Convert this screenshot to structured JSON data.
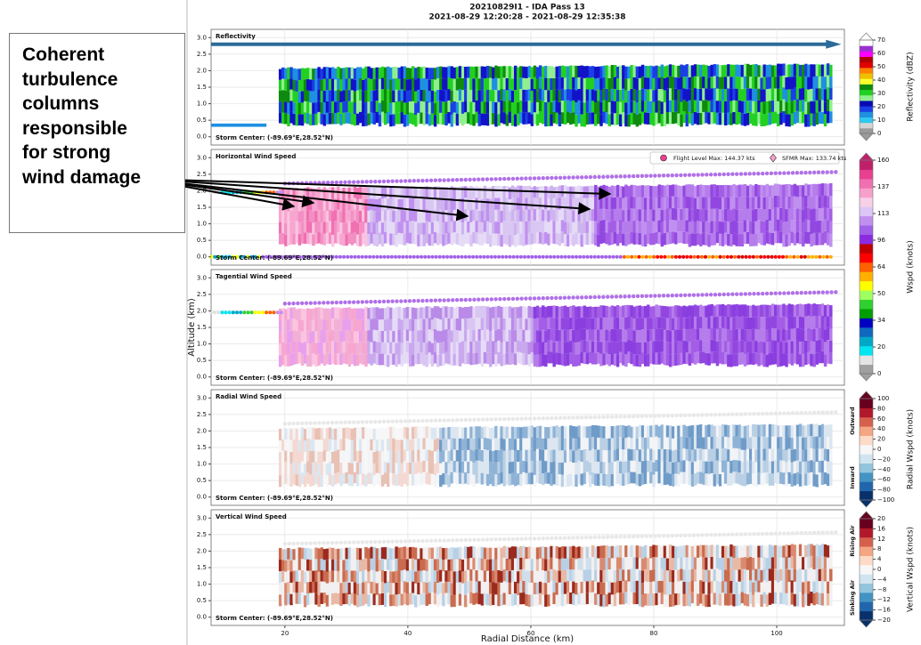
{
  "title": "20210829I1 - IDA Pass 13",
  "subtitle": "2021-08-29 12:20:28 - 2021-08-29 12:35:38",
  "annotation": "Coherent turbulence columns responsible for strong wind damage",
  "x_axis": {
    "label": "Radial Distance (km)",
    "xlim": [
      8,
      111
    ],
    "xticks": [
      20,
      40,
      60,
      80,
      100
    ]
  },
  "y_label": "Altitude (km)",
  "chart_data": [
    {
      "type": "heatmap",
      "title": "Reflectivity",
      "storm_center": "Storm Center: (-89.69°E,28.52°N)",
      "ylim": [
        -0.25,
        3.25
      ],
      "yticks": [
        {
          "value": 0,
          "label": "0.0"
        },
        {
          "value": 0.5,
          "label": "0.5"
        },
        {
          "value": 1,
          "label": "1.0"
        },
        {
          "value": 1.5,
          "label": "1.5"
        },
        {
          "value": 2,
          "label": "2.0"
        },
        {
          "value": 2.5,
          "label": "2.5"
        },
        {
          "value": 3,
          "label": "3.0"
        }
      ],
      "grid": true,
      "colorbar": {
        "label": "Reflectivity (dBZ)",
        "lim": [
          0,
          70
        ],
        "ticks": [
          0,
          10,
          20,
          30,
          40,
          50,
          60,
          70
        ],
        "colors": [
          "#9a9a9a",
          "#d4d4d4",
          "#30c8f0",
          "#1e90e0",
          "#1a3ee6",
          "#0a0ab4",
          "#90f090",
          "#22d022",
          "#0e8a0e",
          "#ffff30",
          "#f0c000",
          "#ff8000",
          "#e00000",
          "#b00000",
          "#ff00ff",
          "#9a30d0",
          "#ffffff"
        ]
      }
    },
    {
      "type": "heatmap",
      "title": "Horizontal Wind Speed",
      "storm_center": "Storm Center: (-89.69°E,28.52°N)",
      "ylim": [
        -0.25,
        3.25
      ],
      "yticks": [
        {
          "value": 0,
          "label": "0.0"
        },
        {
          "value": 0.5,
          "label": "0.5"
        },
        {
          "value": 1,
          "label": "1.0"
        },
        {
          "value": 1.5,
          "label": "1.5"
        },
        {
          "value": 2,
          "label": "2.0"
        },
        {
          "value": 2.5,
          "label": "2.5"
        },
        {
          "value": 3,
          "label": "3.0"
        }
      ],
      "grid": true,
      "legend": [
        "Flight Level Max: 144.37 kts",
        "SFMR Max: 133.74 kts"
      ],
      "colorbar": {
        "label": "Wspd (knots)",
        "ticks": [
          0,
          20,
          34,
          50,
          64,
          96,
          113,
          137,
          160
        ],
        "colors": [
          "#a0a0a0",
          "#e4e4e4",
          "#00e5f0",
          "#00a8c8",
          "#1068c0",
          "#0000c0",
          "#00a000",
          "#30d030",
          "#a0ff60",
          "#ffff00",
          "#ffb000",
          "#ff6000",
          "#ff0000",
          "#c00000",
          "#8a2be2",
          "#a060e8",
          "#c090f0",
          "#ddc6f7",
          "#f7d0e8",
          "#f7a0cc",
          "#f070b0",
          "#e8408f",
          "#c0206a"
        ]
      }
    },
    {
      "type": "heatmap",
      "title": "Tagential Wind Speed",
      "storm_center": "Storm Center: (-89.69°E,28.52°N)",
      "ylim": [
        -0.25,
        3.25
      ],
      "yticks": [
        {
          "value": 0,
          "label": "0.0"
        },
        {
          "value": 0.5,
          "label": "0.5"
        },
        {
          "value": 1,
          "label": "1.0"
        },
        {
          "value": 1.5,
          "label": "1.5"
        },
        {
          "value": 2,
          "label": "2.0"
        },
        {
          "value": 2.5,
          "label": "2.5"
        },
        {
          "value": 3,
          "label": "3.0"
        }
      ],
      "grid": true
    },
    {
      "type": "heatmap",
      "title": "Radial Wind Speed",
      "storm_center": "Storm Center: (-89.69°E,28.52°N)",
      "ylim": [
        -0.25,
        3.25
      ],
      "yticks": [
        {
          "value": 0,
          "label": "0.0"
        },
        {
          "value": 0.5,
          "label": "0.5"
        },
        {
          "value": 1,
          "label": "1.0"
        },
        {
          "value": 1.5,
          "label": "1.5"
        },
        {
          "value": 2,
          "label": "2.0"
        },
        {
          "value": 2.5,
          "label": "2.5"
        },
        {
          "value": 3,
          "label": "3.0"
        }
      ],
      "grid": true,
      "colorbar": {
        "label": "Radial Wspd (knots)",
        "lim": [
          -100,
          100
        ],
        "side_labels": [
          "Outward",
          "Inward"
        ],
        "ticks": [
          {
            "value": -100,
            "label": "−100"
          },
          {
            "value": -80,
            "label": "−80"
          },
          {
            "value": -60,
            "label": "−60"
          },
          {
            "value": -40,
            "label": "−40"
          },
          {
            "value": -20,
            "label": "−20"
          },
          0,
          20,
          40,
          60,
          80,
          100
        ],
        "colors": [
          "#08306b",
          "#2166ac",
          "#4393c3",
          "#92c5de",
          "#d1e5f0",
          "#f7f7f7",
          "#fddbc7",
          "#f4a582",
          "#d6604d",
          "#b2182b",
          "#67001f"
        ]
      }
    },
    {
      "type": "heatmap",
      "title": "Vertical Wind Speed",
      "storm_center": "Storm Center: (-89.69°E,28.52°N)",
      "ylim": [
        -0.25,
        3.25
      ],
      "yticks": [
        {
          "value": 0,
          "label": "0.0"
        },
        {
          "value": 0.5,
          "label": "0.5"
        },
        {
          "value": 1,
          "label": "1.0"
        },
        {
          "value": 1.5,
          "label": "1.5"
        },
        {
          "value": 2,
          "label": "2.0"
        },
        {
          "value": 2.5,
          "label": "2.5"
        },
        {
          "value": 3,
          "label": "3.0"
        }
      ],
      "grid": true,
      "colorbar": {
        "label": "Vertical Wspd (knots)",
        "lim": [
          -20,
          20
        ],
        "side_labels": [
          "Rising Air",
          "Sinking Air"
        ],
        "ticks": [
          {
            "value": -20,
            "label": "−20"
          },
          {
            "value": -16,
            "label": "−16"
          },
          {
            "value": -12,
            "label": "−12"
          },
          {
            "value": -8,
            "label": "−8"
          },
          {
            "value": -4,
            "label": "−4"
          },
          0,
          4,
          8,
          12,
          16,
          20
        ],
        "colors": [
          "#08306b",
          "#2166ac",
          "#4393c3",
          "#92c5de",
          "#d1e5f0",
          "#f7f7f7",
          "#fddbc7",
          "#f4a582",
          "#d6604d",
          "#b2182b",
          "#67001f"
        ]
      }
    }
  ]
}
